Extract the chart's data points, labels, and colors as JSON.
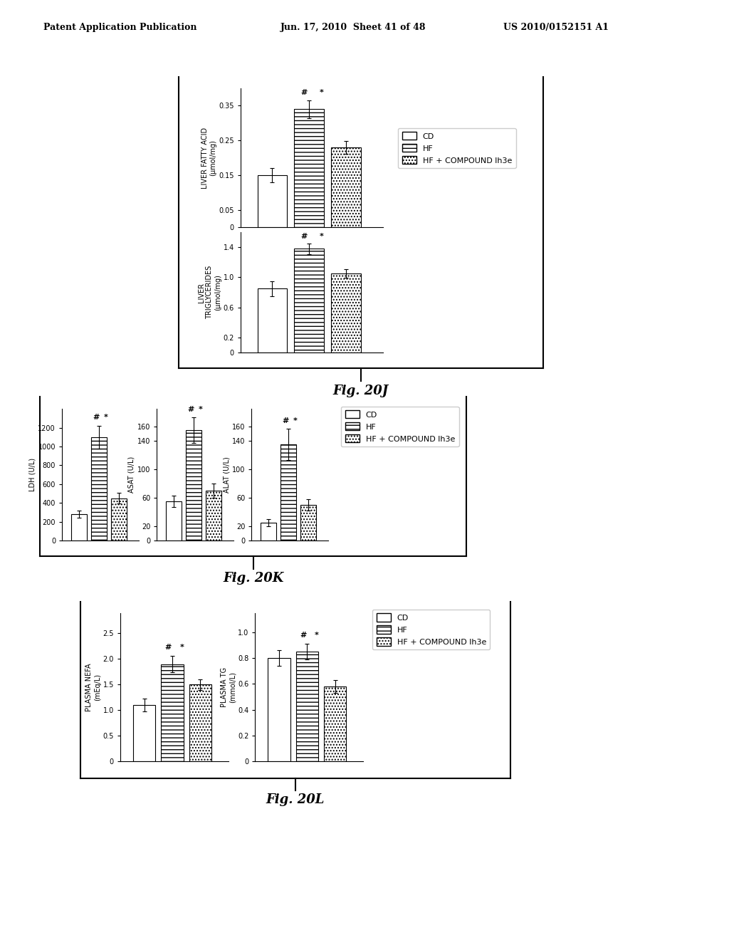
{
  "header_left": "Patent Application Publication",
  "header_middle": "Jun. 17, 2010  Sheet 41 of 48",
  "header_right": "US 2010/0152151 A1",
  "fig20J": {
    "label": "Fig. 20J",
    "panels": [
      {
        "ylabel_line1": "LIVER FATTY ACID",
        "ylabel_line2": "(μmol/mg)",
        "yticks": [
          0,
          0.05,
          0.15,
          0.25,
          0.35
        ],
        "ylim": [
          0,
          0.4
        ],
        "bars": [
          0.15,
          0.34,
          0.23
        ],
        "errors": [
          0.02,
          0.025,
          0.018
        ]
      },
      {
        "ylabel_line1": "LIVER",
        "ylabel_line2": "TRIGLYCERIDES",
        "ylabel_line3": "(μmol/mg)",
        "yticks": [
          0,
          0.2,
          0.6,
          1.0,
          1.4
        ],
        "ylim": [
          0,
          1.6
        ],
        "bars": [
          0.85,
          1.38,
          1.05
        ],
        "errors": [
          0.1,
          0.07,
          0.06
        ]
      }
    ],
    "legend": [
      "CD",
      "HF",
      "HF + COMPOUND lh3e"
    ]
  },
  "fig20K": {
    "label": "Fig. 20K",
    "panels": [
      {
        "ylabel": "LDH (U/L)",
        "yticks": [
          0,
          200,
          400,
          600,
          800,
          1000,
          1200
        ],
        "ylim": [
          0,
          1400
        ],
        "bars": [
          280,
          1100,
          450
        ],
        "errors": [
          35,
          120,
          55
        ]
      },
      {
        "ylabel": "ASAT (U/L)",
        "yticks": [
          0,
          20,
          60,
          100,
          140,
          160
        ],
        "ylim": [
          0,
          185
        ],
        "bars": [
          55,
          155,
          70
        ],
        "errors": [
          8,
          18,
          10
        ]
      },
      {
        "ylabel": "ALAT (U/L)",
        "yticks": [
          0,
          20,
          60,
          100,
          140,
          160
        ],
        "ylim": [
          0,
          185
        ],
        "bars": [
          25,
          135,
          50
        ],
        "errors": [
          5,
          22,
          8
        ]
      }
    ],
    "legend": [
      "CD",
      "HF",
      "HF + COMPOUND lh3e"
    ]
  },
  "fig20L": {
    "label": "Fig. 20L",
    "panels": [
      {
        "ylabel_line1": "PLASMA NEFA",
        "ylabel_line2": "(mEq/L)",
        "yticks": [
          0,
          0.5,
          1.0,
          1.5,
          2.0,
          2.5
        ],
        "ylim": [
          0,
          2.9
        ],
        "bars": [
          1.1,
          1.9,
          1.5
        ],
        "errors": [
          0.12,
          0.16,
          0.1
        ]
      },
      {
        "ylabel_line1": "PLASMA TG",
        "ylabel_line2": "(mmol/L)",
        "yticks": [
          0,
          0.2,
          0.4,
          0.6,
          0.8,
          1.0
        ],
        "ylim": [
          0,
          1.15
        ],
        "bars": [
          0.8,
          0.85,
          0.58
        ],
        "errors": [
          0.06,
          0.06,
          0.05
        ]
      }
    ],
    "legend": [
      "CD",
      "HF",
      "HF + COMPOUND lh3e"
    ]
  },
  "bar_colors": [
    "white",
    "white",
    "white"
  ],
  "bar_hatches": [
    null,
    "---",
    "...."
  ],
  "bar_edgecolor": "black",
  "background_color": "white"
}
